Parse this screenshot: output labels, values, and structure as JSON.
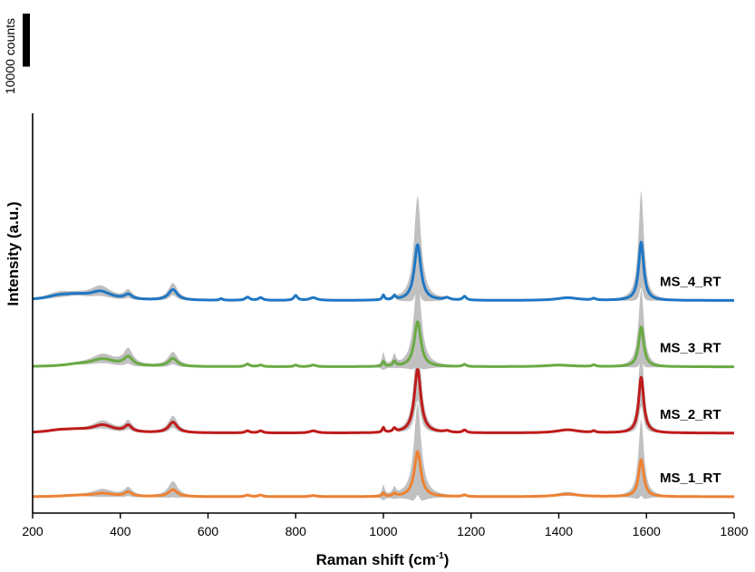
{
  "chart_data": {
    "type": "line",
    "xlabel": "Raman shift (cm",
    "xlabel_sup": "-1",
    "xlabel_end": ")",
    "ylabel": "Intensity (a.u.)",
    "xlim": [
      200,
      1800
    ],
    "xticks": [
      200,
      400,
      600,
      800,
      1000,
      1200,
      1400,
      1600,
      1800
    ],
    "scale_bar": {
      "label": "10000 counts",
      "counts": 10000
    },
    "grid": false,
    "band_color": "#c0c0c0",
    "series": [
      {
        "name": "MS_4_RT",
        "color": "#1f77c4",
        "offset": 37000,
        "peaks": [
          [
            260,
            700,
            35
          ],
          [
            300,
            700,
            35
          ],
          [
            355,
            1500,
            30
          ],
          [
            418,
            900,
            10
          ],
          [
            520,
            2000,
            12
          ],
          [
            630,
            300,
            4
          ],
          [
            690,
            600,
            6
          ],
          [
            720,
            500,
            6
          ],
          [
            800,
            900,
            5
          ],
          [
            840,
            500,
            10
          ],
          [
            1000,
            900,
            3
          ],
          [
            1025,
            700,
            4
          ],
          [
            1078,
            10500,
            9
          ],
          [
            1145,
            400,
            8
          ],
          [
            1185,
            700,
            5
          ],
          [
            1420,
            500,
            30
          ],
          [
            1480,
            300,
            5
          ],
          [
            1588,
            11000,
            7
          ]
        ],
        "band": [
          [
            260,
            900,
            35
          ],
          [
            355,
            1800,
            30
          ],
          [
            418,
            1200,
            12
          ],
          [
            520,
            2200,
            15
          ],
          [
            1078,
            18000,
            11
          ],
          [
            1588,
            19000,
            8
          ]
        ]
      },
      {
        "name": "MS_3_RT",
        "color": "#6aaa44",
        "offset": 24500,
        "peaks": [
          [
            300,
            300,
            35
          ],
          [
            360,
            1400,
            35
          ],
          [
            418,
            1600,
            12
          ],
          [
            520,
            1500,
            12
          ],
          [
            690,
            500,
            6
          ],
          [
            720,
            300,
            6
          ],
          [
            800,
            300,
            5
          ],
          [
            840,
            300,
            8
          ],
          [
            1000,
            900,
            3
          ],
          [
            1025,
            900,
            4
          ],
          [
            1078,
            8500,
            9
          ],
          [
            1185,
            400,
            5
          ],
          [
            1400,
            300,
            40
          ],
          [
            1480,
            300,
            5
          ],
          [
            1588,
            7500,
            7
          ]
        ],
        "band": [
          [
            360,
            1600,
            35
          ],
          [
            418,
            2600,
            14
          ],
          [
            520,
            2200,
            15
          ],
          [
            1000,
            3000,
            4
          ],
          [
            1025,
            2000,
            5
          ],
          [
            1078,
            17000,
            11
          ],
          [
            1588,
            14000,
            8
          ]
        ]
      },
      {
        "name": "MS_2_RT",
        "color": "#c01b1b",
        "offset": 12000,
        "peaks": [
          [
            260,
            400,
            35
          ],
          [
            300,
            400,
            35
          ],
          [
            360,
            1400,
            30
          ],
          [
            418,
            1200,
            10
          ],
          [
            520,
            2000,
            12
          ],
          [
            690,
            400,
            6
          ],
          [
            720,
            400,
            6
          ],
          [
            840,
            400,
            10
          ],
          [
            1000,
            900,
            3
          ],
          [
            1025,
            700,
            4
          ],
          [
            1078,
            12000,
            9
          ],
          [
            1145,
            300,
            8
          ],
          [
            1185,
            500,
            5
          ],
          [
            1420,
            600,
            30
          ],
          [
            1480,
            300,
            5
          ],
          [
            1588,
            10500,
            7
          ]
        ],
        "band": [
          [
            360,
            1400,
            30
          ],
          [
            418,
            1400,
            12
          ],
          [
            520,
            2200,
            15
          ],
          [
            1078,
            13000,
            10
          ],
          [
            1588,
            12000,
            8
          ]
        ]
      },
      {
        "name": "MS_1_RT",
        "color": "#ed8133",
        "offset": 0,
        "peaks": [
          [
            300,
            200,
            35
          ],
          [
            360,
            600,
            30
          ],
          [
            418,
            800,
            10
          ],
          [
            520,
            1300,
            12
          ],
          [
            690,
            300,
            6
          ],
          [
            720,
            300,
            6
          ],
          [
            840,
            200,
            10
          ],
          [
            1000,
            600,
            3
          ],
          [
            1025,
            500,
            4
          ],
          [
            1078,
            8500,
            9
          ],
          [
            1185,
            300,
            5
          ],
          [
            1420,
            500,
            30
          ],
          [
            1588,
            7000,
            7
          ]
        ],
        "band": [
          [
            360,
            1400,
            30
          ],
          [
            418,
            1400,
            12
          ],
          [
            520,
            3000,
            14
          ],
          [
            1000,
            2500,
            4
          ],
          [
            1025,
            1600,
            5
          ],
          [
            1078,
            18000,
            11
          ],
          [
            1420,
            600,
            30
          ],
          [
            1588,
            15000,
            8
          ]
        ]
      }
    ]
  }
}
